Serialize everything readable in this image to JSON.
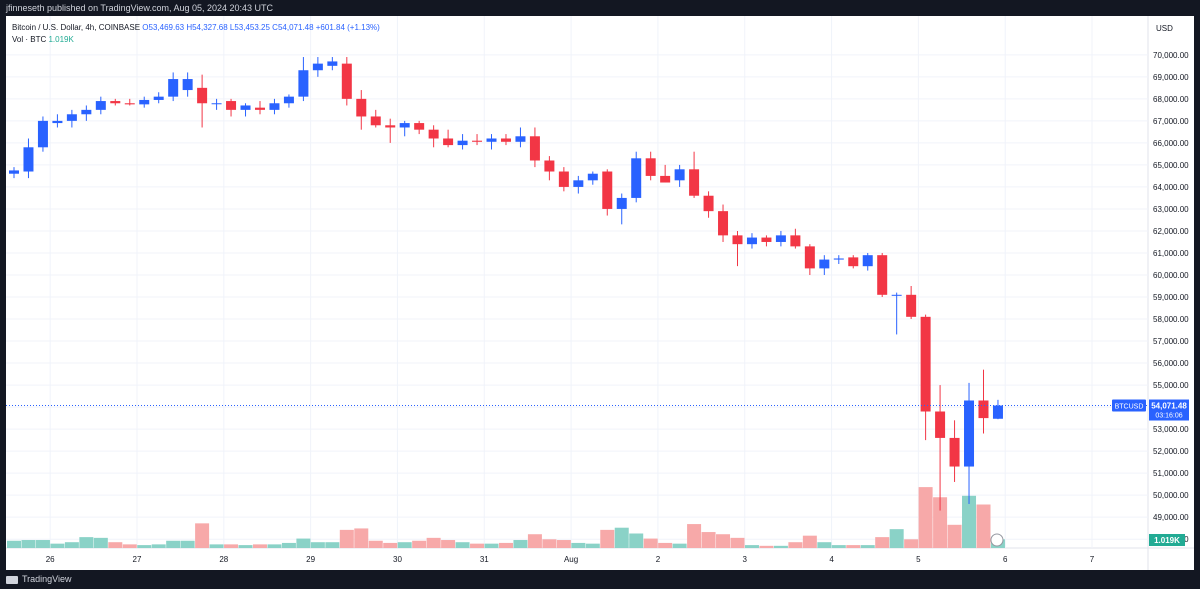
{
  "header": {
    "publisher": "jfinneseth published on TradingView.com, Aug 05, 2024 20:43 UTC"
  },
  "legend": {
    "symbol": "Bitcoin / U.S. Dollar, 4h, COINBASE",
    "ohlc": "O53,469.63 H54,327.68 L53,453.25 C54,071.48 +601.84 (+1.13%)",
    "volume_label": "Vol · BTC",
    "volume_value": "1.019K"
  },
  "footer": {
    "brand": "TradingView"
  },
  "colors": {
    "up": "#2962ff",
    "down": "#f23645",
    "vol_up": "#8ad2c7",
    "vol_down": "#f7a9a9",
    "grid": "#f0f3fa",
    "price_line": "#2962ff",
    "vol_tag": "#22ab94"
  },
  "chart_data": {
    "type": "candlestick",
    "currency": "USD",
    "current_price_label": "BTCUSD",
    "current_price": "54,071.48",
    "countdown": "03:16:06",
    "last_volume_label": "1.019K",
    "y_ticks": [
      "70,000.00",
      "69,000.00",
      "68,000.00",
      "67,000.00",
      "66,000.00",
      "65,000.00",
      "64,000.00",
      "63,000.00",
      "62,000.00",
      "61,000.00",
      "60,000.00",
      "59,000.00",
      "58,000.00",
      "57,000.00",
      "56,000.00",
      "55,000.00",
      "54,000.00",
      "53,000.00",
      "52,000.00",
      "51,000.00",
      "50,000.00",
      "49,000.00",
      "48,000.00"
    ],
    "ylim": [
      47600,
      71400
    ],
    "x_labels": [
      "26",
      "27",
      "28",
      "29",
      "30",
      "31",
      "Aug",
      "2",
      "3",
      "4",
      "5",
      "6",
      "7"
    ],
    "bars_per_day": 6,
    "candles": [
      {
        "o": 64600,
        "h": 64900,
        "l": 64400,
        "c": 64750,
        "v": 0.5
      },
      {
        "o": 64700,
        "h": 66200,
        "l": 64400,
        "c": 65800,
        "v": 0.55
      },
      {
        "o": 65800,
        "h": 67200,
        "l": 65600,
        "c": 67000,
        "v": 0.55
      },
      {
        "o": 66900,
        "h": 67300,
        "l": 66700,
        "c": 67000,
        "v": 0.3
      },
      {
        "o": 67000,
        "h": 67500,
        "l": 66700,
        "c": 67300,
        "v": 0.4
      },
      {
        "o": 67300,
        "h": 67700,
        "l": 67000,
        "c": 67500,
        "v": 0.75
      },
      {
        "o": 67500,
        "h": 68100,
        "l": 67300,
        "c": 67900,
        "v": 0.7
      },
      {
        "o": 67900,
        "h": 68000,
        "l": 67700,
        "c": 67800,
        "v": 0.4
      },
      {
        "o": 67800,
        "h": 68000,
        "l": 67700,
        "c": 67750,
        "v": 0.25
      },
      {
        "o": 67750,
        "h": 68100,
        "l": 67600,
        "c": 67950,
        "v": 0.2
      },
      {
        "o": 67950,
        "h": 68300,
        "l": 67800,
        "c": 68100,
        "v": 0.25
      },
      {
        "o": 68100,
        "h": 69200,
        "l": 67900,
        "c": 68900,
        "v": 0.5
      },
      {
        "o": 68400,
        "h": 69200,
        "l": 68100,
        "c": 68900,
        "v": 0.5
      },
      {
        "o": 68500,
        "h": 69100,
        "l": 66700,
        "c": 67800,
        "v": 1.7
      },
      {
        "o": 67800,
        "h": 68000,
        "l": 67500,
        "c": 67800,
        "v": 0.25
      },
      {
        "o": 67900,
        "h": 68000,
        "l": 67200,
        "c": 67500,
        "v": 0.25
      },
      {
        "o": 67500,
        "h": 67800,
        "l": 67200,
        "c": 67700,
        "v": 0.2
      },
      {
        "o": 67600,
        "h": 67900,
        "l": 67300,
        "c": 67500,
        "v": 0.25
      },
      {
        "o": 67500,
        "h": 68000,
        "l": 67300,
        "c": 67800,
        "v": 0.25
      },
      {
        "o": 67800,
        "h": 68200,
        "l": 67600,
        "c": 68100,
        "v": 0.35
      },
      {
        "o": 68100,
        "h": 69900,
        "l": 67900,
        "c": 69300,
        "v": 0.65
      },
      {
        "o": 69300,
        "h": 69900,
        "l": 69000,
        "c": 69600,
        "v": 0.4
      },
      {
        "o": 69500,
        "h": 69900,
        "l": 69300,
        "c": 69700,
        "v": 0.4
      },
      {
        "o": 69600,
        "h": 69900,
        "l": 67700,
        "c": 68000,
        "v": 1.25
      },
      {
        "o": 68000,
        "h": 68400,
        "l": 66600,
        "c": 67200,
        "v": 1.35
      },
      {
        "o": 67200,
        "h": 67500,
        "l": 66700,
        "c": 66800,
        "v": 0.5
      },
      {
        "o": 66800,
        "h": 67100,
        "l": 66000,
        "c": 66700,
        "v": 0.35
      },
      {
        "o": 66700,
        "h": 67000,
        "l": 66300,
        "c": 66900,
        "v": 0.4
      },
      {
        "o": 66900,
        "h": 67000,
        "l": 66400,
        "c": 66600,
        "v": 0.5
      },
      {
        "o": 66600,
        "h": 66800,
        "l": 65800,
        "c": 66200,
        "v": 0.7
      },
      {
        "o": 66200,
        "h": 66600,
        "l": 65800,
        "c": 65900,
        "v": 0.55
      },
      {
        "o": 65900,
        "h": 66400,
        "l": 65700,
        "c": 66100,
        "v": 0.4
      },
      {
        "o": 66100,
        "h": 66400,
        "l": 65900,
        "c": 66050,
        "v": 0.3
      },
      {
        "o": 66050,
        "h": 66400,
        "l": 65700,
        "c": 66200,
        "v": 0.3
      },
      {
        "o": 66200,
        "h": 66400,
        "l": 65900,
        "c": 66050,
        "v": 0.35
      },
      {
        "o": 66050,
        "h": 66700,
        "l": 65800,
        "c": 66300,
        "v": 0.55
      },
      {
        "o": 66300,
        "h": 66700,
        "l": 64900,
        "c": 65200,
        "v": 0.95
      },
      {
        "o": 65200,
        "h": 65400,
        "l": 64300,
        "c": 64700,
        "v": 0.6
      },
      {
        "o": 64700,
        "h": 64900,
        "l": 63800,
        "c": 64000,
        "v": 0.55
      },
      {
        "o": 64000,
        "h": 64500,
        "l": 63700,
        "c": 64300,
        "v": 0.35
      },
      {
        "o": 64300,
        "h": 64700,
        "l": 64100,
        "c": 64600,
        "v": 0.3
      },
      {
        "o": 64700,
        "h": 64800,
        "l": 62700,
        "c": 63000,
        "v": 1.25
      },
      {
        "o": 63000,
        "h": 63700,
        "l": 62300,
        "c": 63500,
        "v": 1.4
      },
      {
        "o": 63500,
        "h": 65600,
        "l": 63300,
        "c": 65300,
        "v": 1.0
      },
      {
        "o": 65300,
        "h": 65600,
        "l": 64300,
        "c": 64500,
        "v": 0.65
      },
      {
        "o": 64500,
        "h": 65000,
        "l": 64200,
        "c": 64200,
        "v": 0.35
      },
      {
        "o": 64300,
        "h": 65000,
        "l": 64000,
        "c": 64800,
        "v": 0.3
      },
      {
        "o": 64800,
        "h": 65600,
        "l": 63500,
        "c": 63600,
        "v": 1.65
      },
      {
        "o": 63600,
        "h": 63800,
        "l": 62600,
        "c": 62900,
        "v": 1.1
      },
      {
        "o": 62900,
        "h": 63200,
        "l": 61500,
        "c": 61800,
        "v": 0.95
      },
      {
        "o": 61800,
        "h": 62000,
        "l": 60400,
        "c": 61400,
        "v": 0.7
      },
      {
        "o": 61400,
        "h": 61900,
        "l": 61200,
        "c": 61700,
        "v": 0.2
      },
      {
        "o": 61700,
        "h": 61800,
        "l": 61300,
        "c": 61500,
        "v": 0.15
      },
      {
        "o": 61500,
        "h": 62000,
        "l": 61300,
        "c": 61800,
        "v": 0.15
      },
      {
        "o": 61800,
        "h": 62100,
        "l": 61200,
        "c": 61300,
        "v": 0.4
      },
      {
        "o": 61300,
        "h": 61400,
        "l": 60000,
        "c": 60300,
        "v": 0.85
      },
      {
        "o": 60300,
        "h": 60900,
        "l": 60000,
        "c": 60700,
        "v": 0.4
      },
      {
        "o": 60700,
        "h": 60900,
        "l": 60500,
        "c": 60750,
        "v": 0.2
      },
      {
        "o": 60800,
        "h": 60900,
        "l": 60300,
        "c": 60400,
        "v": 0.2
      },
      {
        "o": 60400,
        "h": 61000,
        "l": 60200,
        "c": 60900,
        "v": 0.2
      },
      {
        "o": 60900,
        "h": 61000,
        "l": 59000,
        "c": 59100,
        "v": 0.75
      },
      {
        "o": 59100,
        "h": 59200,
        "l": 57300,
        "c": 59100,
        "v": 1.3
      },
      {
        "o": 59100,
        "h": 59500,
        "l": 58000,
        "c": 58100,
        "v": 0.6
      },
      {
        "o": 58100,
        "h": 58200,
        "l": 52500,
        "c": 53800,
        "v": 4.2
      },
      {
        "o": 53800,
        "h": 55000,
        "l": 49300,
        "c": 52600,
        "v": 3.5
      },
      {
        "o": 52600,
        "h": 53400,
        "l": 50600,
        "c": 51300,
        "v": 1.6
      },
      {
        "o": 51300,
        "h": 55100,
        "l": 49600,
        "c": 54300,
        "v": 3.6
      },
      {
        "o": 54300,
        "h": 55700,
        "l": 52800,
        "c": 53500,
        "v": 3.0
      },
      {
        "o": 53470,
        "h": 54330,
        "l": 53450,
        "c": 54070,
        "v": 0.6
      }
    ]
  }
}
